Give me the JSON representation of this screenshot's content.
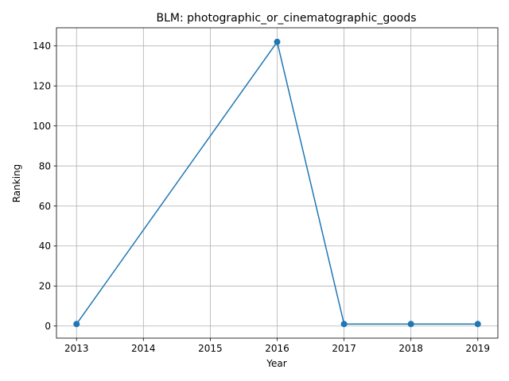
{
  "chart_data": {
    "type": "line",
    "title": "BLM: photographic_or_cinematographic_goods",
    "xlabel": "Year",
    "ylabel": "Ranking",
    "x": [
      2013,
      2016,
      2017,
      2018,
      2019
    ],
    "series": [
      {
        "values": [
          1,
          142,
          1,
          1,
          1
        ],
        "color": "#1f77b4"
      }
    ],
    "xticks": [
      2013,
      2014,
      2015,
      2016,
      2017,
      2018,
      2019
    ],
    "yticks": [
      0,
      20,
      40,
      60,
      80,
      100,
      120,
      140
    ],
    "xlim": [
      2012.7,
      2019.3
    ],
    "ylim": [
      -6.05,
      149.05
    ],
    "grid": true,
    "markers": "circle"
  }
}
